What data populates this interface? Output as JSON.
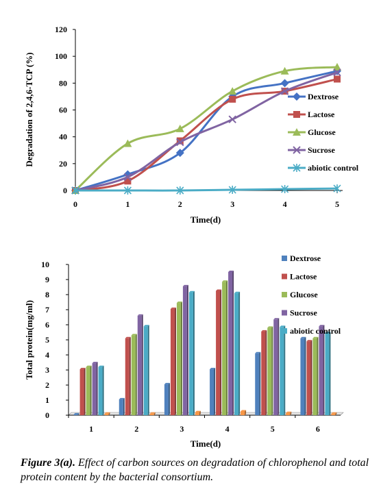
{
  "chart_data": [
    {
      "type": "line",
      "xlabel": "Time(d)",
      "ylabel": "Degradation of 2,4,6-TCP (%)",
      "x": [
        0,
        1,
        2,
        3,
        4,
        5
      ],
      "ylim": [
        0,
        120
      ],
      "yticks": [
        0,
        20,
        40,
        60,
        80,
        100,
        120
      ],
      "grid": false,
      "legend_position": "right",
      "series": [
        {
          "name": "Dextrose",
          "values": [
            0,
            12,
            28,
            70,
            80,
            89
          ],
          "color": "#4472c4",
          "marker": "diamond"
        },
        {
          "name": "Lactose",
          "values": [
            0,
            7,
            37,
            68,
            74,
            83
          ],
          "color": "#c0504d",
          "marker": "square"
        },
        {
          "name": "Glucose",
          "values": [
            0,
            35,
            46,
            74,
            89,
            92
          ],
          "color": "#9bbb59",
          "marker": "triangle"
        },
        {
          "name": "Sucrose",
          "values": [
            0,
            10,
            36,
            53,
            74,
            88
          ],
          "color": "#8064a2",
          "marker": "x"
        },
        {
          "name": "abiotic control",
          "values": [
            0,
            0,
            0,
            0.5,
            1,
            1.5
          ],
          "color": "#4bacc6",
          "marker": "star"
        }
      ]
    },
    {
      "type": "bar",
      "xlabel": "Time(d)",
      "ylabel": "Total protein(mg/ml)",
      "categories": [
        "1",
        "2",
        "3",
        "4",
        "5",
        "6"
      ],
      "ylim": [
        0,
        10
      ],
      "yticks": [
        0,
        1,
        2,
        3,
        4,
        5,
        6,
        7,
        8,
        9,
        10
      ],
      "grid": false,
      "legend_position": "right",
      "series": [
        {
          "name": "Dextrose",
          "values": [
            0.05,
            1.05,
            2.05,
            3.05,
            4.1,
            5.1
          ],
          "color": "#4f81bd"
        },
        {
          "name": "Lactose",
          "values": [
            3.05,
            5.1,
            7.05,
            8.25,
            5.55,
            4.9
          ],
          "color": "#c0504d"
        },
        {
          "name": "Glucose",
          "values": [
            3.2,
            5.3,
            7.45,
            8.85,
            5.8,
            5.1
          ],
          "color": "#9bbb59"
        },
        {
          "name": "Sucrose",
          "values": [
            3.45,
            6.6,
            8.55,
            9.5,
            6.35,
            5.9
          ],
          "color": "#8064a2"
        },
        {
          "name": "abiotic control",
          "values": [
            3.2,
            5.9,
            8.15,
            8.1,
            5.85,
            5.45
          ],
          "color": "#4bacc6"
        },
        {
          "name": "",
          "values": [
            0.1,
            0.1,
            0.2,
            0.25,
            0.15,
            0.1
          ],
          "color": "#f79646"
        }
      ]
    }
  ],
  "caption": {
    "label": "Figure 3(a).",
    "text": " Effect of carbon sources on degradation of chlorophenol and total protein content by the bacterial consortium."
  }
}
